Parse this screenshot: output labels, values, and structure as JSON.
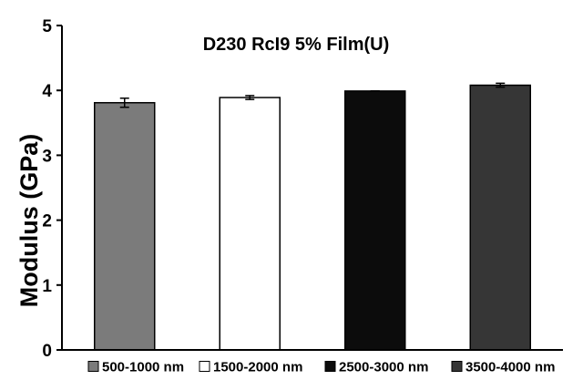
{
  "chart_data": {
    "type": "bar",
    "title": "D230 RcI9 5% Film(U)",
    "xlabel": "",
    "ylabel": "Modulus (GPa)",
    "ylim": [
      0,
      5
    ],
    "yticks": [
      "0",
      "1",
      "2",
      "3",
      "4",
      "5"
    ],
    "grid": false,
    "legend_position": "bottom",
    "categories": [
      "500-1000 nm",
      "1500-2000 nm",
      "2500-3000 nm",
      "3500-4000 nm"
    ],
    "values": [
      3.81,
      3.89,
      3.99,
      4.08
    ],
    "errors": [
      0.07,
      0.03,
      0.0,
      0.03
    ],
    "colors": [
      "#7b7b7b",
      "#ffffff",
      "#0c0c0c",
      "#363636"
    ]
  }
}
